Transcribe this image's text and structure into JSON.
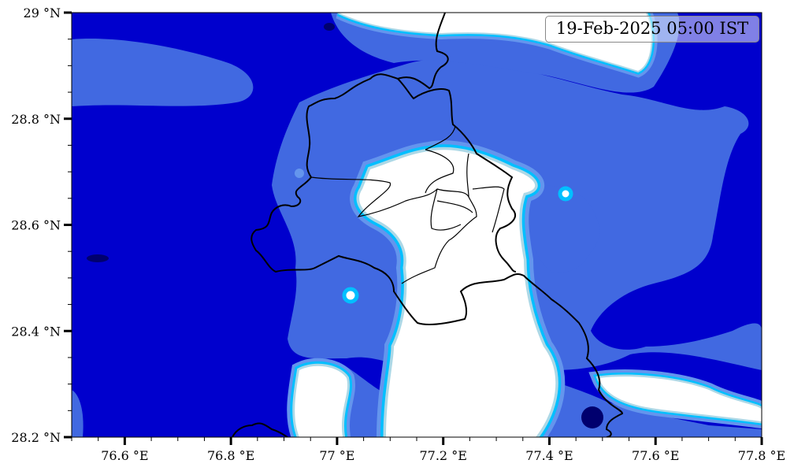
{
  "timestamp": "19-Feb-2025 05:00 IST",
  "map": {
    "extent": {
      "lon_min": 76.5,
      "lon_max": 77.8,
      "lat_min": 28.2,
      "lat_max": 29.0
    },
    "x_ticks": [
      {
        "value": 76.6,
        "label": "76.6 °E"
      },
      {
        "value": 76.8,
        "label": "76.8 °E"
      },
      {
        "value": 77.0,
        "label": "77 °E"
      },
      {
        "value": 77.2,
        "label": "77.2 °E"
      },
      {
        "value": 77.4,
        "label": "77.4 °E"
      },
      {
        "value": 77.6,
        "label": "77.6 °E"
      },
      {
        "value": 77.8,
        "label": "77.8 °E"
      }
    ],
    "y_ticks": [
      {
        "value": 29.0,
        "label": "29 °N"
      },
      {
        "value": 28.8,
        "label": "28.8 °N"
      },
      {
        "value": 28.6,
        "label": "28.6 °N"
      },
      {
        "value": 28.4,
        "label": "28.4 °N"
      },
      {
        "value": 28.2,
        "label": "28.2 °N"
      }
    ],
    "minor_tick_step": 0.05,
    "colors": {
      "level_darkest": "#00006e",
      "level_dark": "#0000cd",
      "level_mid": "#4169e1",
      "level_light": "#6495ed",
      "level_cyan": "#00bfff",
      "level_pale": "#add8e6",
      "level_none": "#ffffff",
      "boundary": "#000000"
    }
  }
}
